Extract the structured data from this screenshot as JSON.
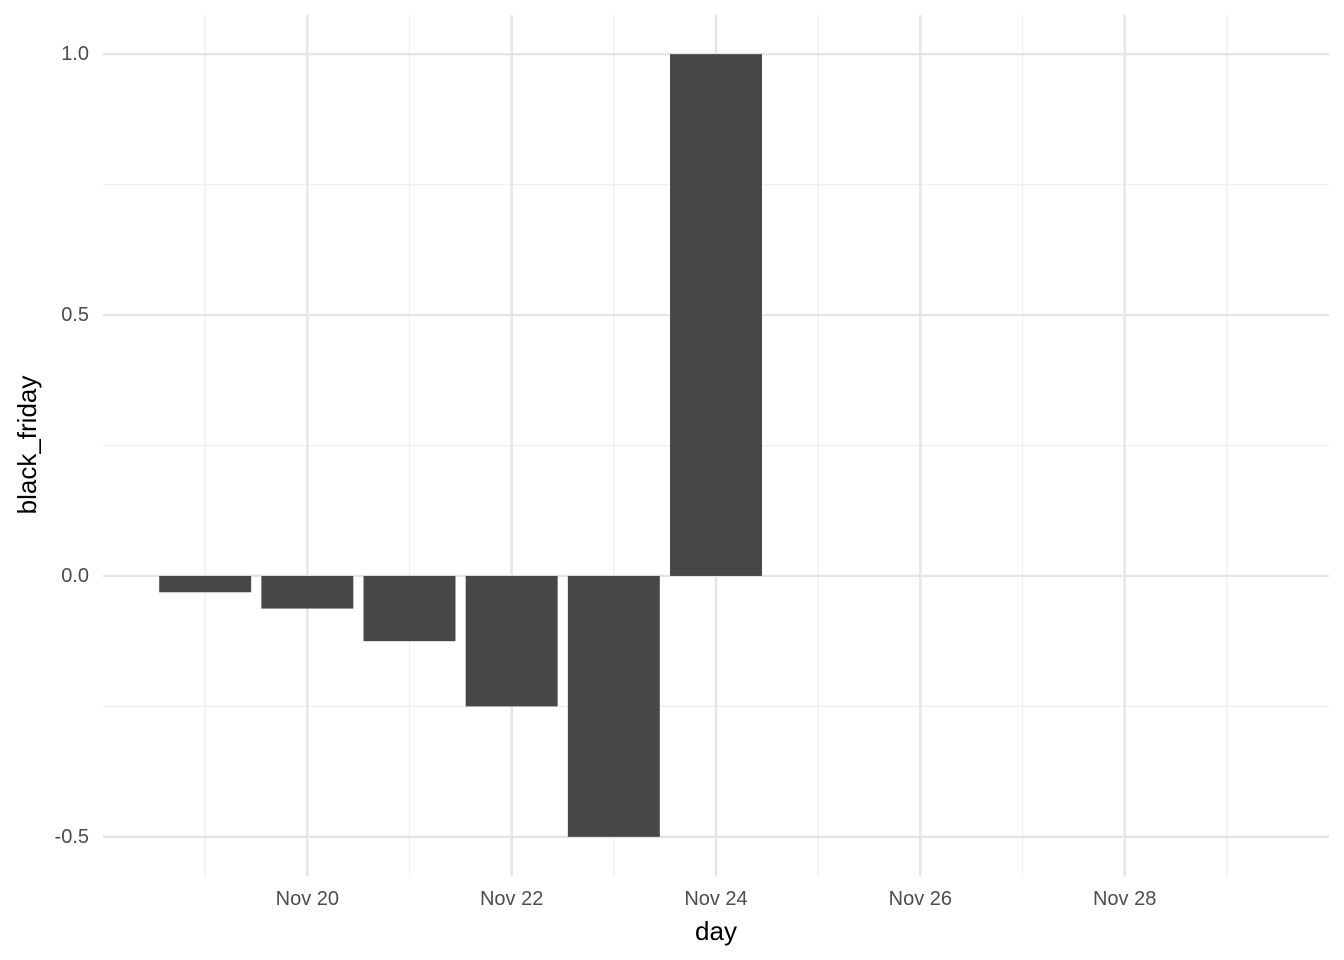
{
  "chart_data": {
    "type": "bar",
    "title": "",
    "xlabel": "day",
    "ylabel": "black_friday",
    "x": [
      "Nov 19",
      "Nov 20",
      "Nov 21",
      "Nov 22",
      "Nov 23",
      "Nov 24",
      "Nov 25",
      "Nov 26",
      "Nov 27",
      "Nov 28",
      "Nov 29"
    ],
    "values": [
      -0.03125,
      -0.0625,
      -0.125,
      -0.25,
      -0.5,
      1,
      0,
      0,
      0,
      0,
      0
    ],
    "xlim": [
      "Nov 18",
      "Nov 30"
    ],
    "ylim": [
      -0.575,
      1.075
    ],
    "x_ticks": [
      "Nov 20",
      "Nov 22",
      "Nov 24",
      "Nov 26",
      "Nov 28"
    ],
    "y_ticks": [
      "-0.5",
      "0.0",
      "0.5",
      "1.0"
    ],
    "grid": true,
    "legend": "none",
    "colors": {
      "bar": "#474747",
      "grid_major": "#e5e5e5",
      "grid_minor": "#efefef",
      "tick_text": "#4d4d4d",
      "title_text": "#000000"
    }
  }
}
